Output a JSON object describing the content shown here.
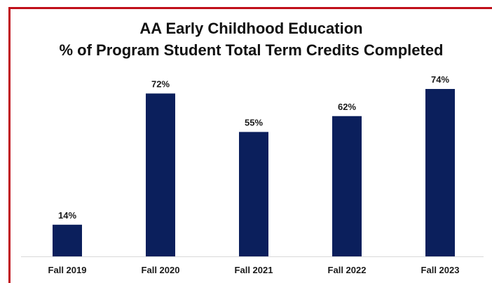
{
  "chart_data": {
    "type": "bar",
    "title_lines": [
      "AA Early Childhood Education",
      "% of Program Student Total Term Credits Completed"
    ],
    "categories": [
      "Fall 2019",
      "Fall 2020",
      "Fall 2021",
      "Fall 2022",
      "Fall 2023"
    ],
    "values": [
      14,
      72,
      55,
      62,
      74
    ],
    "value_labels": [
      "14%",
      "72%",
      "55%",
      "62%",
      "74%"
    ],
    "xlabel": "",
    "ylabel": "",
    "ylim": [
      0,
      80
    ],
    "grid": false,
    "legend": "none",
    "bar_color": "#0b1f5c",
    "frame_color": "#c0101a"
  }
}
